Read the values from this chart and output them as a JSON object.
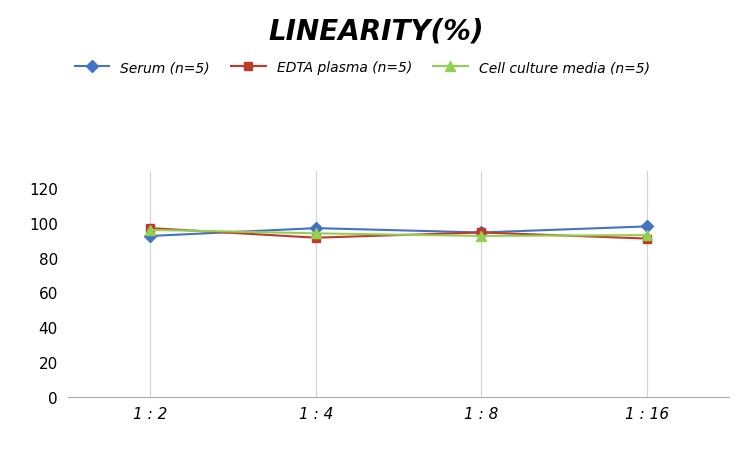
{
  "title": "LINEARITY(%)",
  "x_labels": [
    "1 : 2",
    "1 : 4",
    "1 : 8",
    "1 : 16"
  ],
  "x_positions": [
    0,
    1,
    2,
    3
  ],
  "series": [
    {
      "label": "Serum (n=5)",
      "color": "#4472C4",
      "marker": "D",
      "markersize": 6,
      "values": [
        92.5,
        97.0,
        94.5,
        98.0
      ]
    },
    {
      "label": "EDTA plasma (n=5)",
      "color": "#C0392B",
      "marker": "s",
      "markersize": 6,
      "values": [
        97.0,
        91.5,
        94.5,
        91.0
      ]
    },
    {
      "label": "Cell culture media (n=5)",
      "color": "#92D050",
      "marker": "^",
      "markersize": 7,
      "values": [
        96.0,
        94.0,
        92.5,
        93.0
      ]
    }
  ],
  "ylim": [
    0,
    130
  ],
  "yticks": [
    0,
    20,
    40,
    60,
    80,
    100,
    120
  ],
  "background_color": "#ffffff",
  "grid_color": "#d3d3d3",
  "title_fontsize": 20,
  "legend_fontsize": 10,
  "tick_fontsize": 11
}
